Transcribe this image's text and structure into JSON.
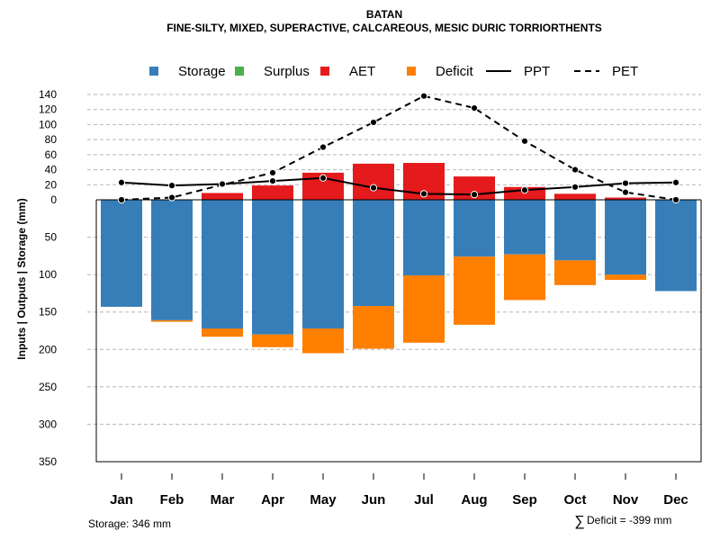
{
  "chart_data": {
    "type": "bar",
    "title": "BATAN",
    "subtitle": "FINE-SILTY, MIXED, SUPERACTIVE, CALCAREOUS, MESIC DURIC TORRIORTHENTS",
    "ylabel": "Inputs | Outputs | Storage     (mm)",
    "categories": [
      "Jan",
      "Feb",
      "Mar",
      "Apr",
      "May",
      "Jun",
      "Jul",
      "Aug",
      "Sep",
      "Oct",
      "Nov",
      "Dec"
    ],
    "upper_axis": {
      "range": [
        0,
        140
      ],
      "ticks": [
        0,
        20,
        40,
        60,
        80,
        100,
        120,
        140
      ]
    },
    "lower_axis": {
      "range": [
        0,
        350
      ],
      "ticks": [
        50,
        100,
        150,
        200,
        250,
        300,
        350
      ]
    },
    "series": [
      {
        "name": "Storage",
        "color": "#377EB8",
        "direction": "down",
        "values": [
          143,
          161,
          172,
          180,
          172,
          142,
          101,
          76,
          73,
          81,
          100,
          122
        ]
      },
      {
        "name": "Surplus",
        "color": "#4DAF4A",
        "direction": "up",
        "values": [
          0,
          0,
          0,
          0,
          0,
          0,
          0,
          0,
          0,
          0,
          0,
          0
        ]
      },
      {
        "name": "AET",
        "color": "#E41A1C",
        "direction": "up",
        "values": [
          0,
          0,
          9,
          19,
          36,
          48,
          49,
          31,
          17,
          8,
          3,
          0
        ]
      },
      {
        "name": "Deficit",
        "color": "#FF7F00",
        "direction": "down",
        "values": [
          0,
          2,
          11,
          17,
          33,
          57,
          90,
          91,
          61,
          33,
          7,
          0
        ]
      },
      {
        "name": "PPT",
        "color": "#000000",
        "line": "solid",
        "values": [
          23,
          19,
          21,
          25,
          29,
          16,
          8,
          7,
          13,
          17,
          22,
          23
        ]
      },
      {
        "name": "PET",
        "color": "#000000",
        "line": "dashed",
        "values": [
          0,
          3,
          20,
          36,
          70,
          103,
          138,
          122,
          78,
          40,
          10,
          0
        ]
      }
    ],
    "legend": [
      "Storage",
      "Surplus",
      "AET",
      "Deficit",
      "PPT",
      "PET"
    ],
    "legend_position": "top",
    "grid": true
  },
  "footer": {
    "storage": "Storage: 346 mm",
    "deficit_symbol": "∑",
    "deficit": "Deficit = -399 mm"
  }
}
